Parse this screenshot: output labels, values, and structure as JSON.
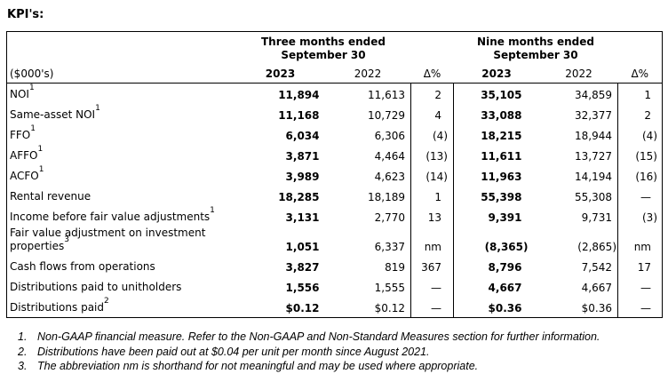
{
  "title": "KPI's:",
  "table": {
    "group_headers": [
      {
        "line1": "Three months ended",
        "line2": "September 30"
      },
      {
        "line1": "Nine months ended",
        "line2": "September 30"
      }
    ],
    "unit_label": "($000's)",
    "col_headers": [
      "2023",
      "2022",
      "Δ%",
      "2023",
      "2022",
      "Δ%"
    ],
    "rows": [
      {
        "label": "NOI",
        "sup": "1",
        "values": [
          "11,894",
          "11,613",
          "2",
          "35,105",
          "34,859",
          "1"
        ]
      },
      {
        "label": "Same-asset NOI",
        "sup": "1",
        "values": [
          "11,168",
          "10,729",
          "4",
          "33,088",
          "32,377",
          "2"
        ]
      },
      {
        "label": "FFO",
        "sup": "1",
        "values": [
          "6,034",
          "6,306",
          "(4)",
          "18,215",
          "18,944",
          "(4)"
        ]
      },
      {
        "label": "AFFO",
        "sup": "1",
        "values": [
          "3,871",
          "4,464",
          "(13)",
          "11,611",
          "13,727",
          "(15)"
        ]
      },
      {
        "label": "ACFO",
        "sup": "1",
        "values": [
          "3,989",
          "4,623",
          "(14)",
          "11,963",
          "14,194",
          "(16)"
        ]
      },
      {
        "label": "Rental revenue",
        "sup": "",
        "values": [
          "18,285",
          "18,189",
          "1",
          "55,398",
          "55,308",
          "—"
        ]
      },
      {
        "label": "Income before fair value adjustments",
        "sup": "1",
        "values": [
          "3,131",
          "2,770",
          "13",
          "9,391",
          "9,731",
          "(3)"
        ]
      },
      {
        "label": "Fair value adjustment on investment",
        "label2": "properties",
        "sup": "3",
        "values": [
          "1,051",
          "6,337",
          "nm",
          "(8,365)",
          "(2,865)",
          "nm"
        ]
      },
      {
        "label": "Cash flows from operations",
        "sup": "",
        "values": [
          "3,827",
          "819",
          "367",
          "8,796",
          "7,542",
          "17"
        ]
      },
      {
        "label": "Distributions paid to unitholders",
        "sup": "",
        "values": [
          "1,556",
          "1,555",
          "—",
          "4,667",
          "4,667",
          "—"
        ]
      },
      {
        "label": "Distributions paid",
        "sup": "2",
        "values": [
          "$0.12",
          "$0.12",
          "—",
          "$0.36",
          "$0.36",
          "—"
        ]
      }
    ]
  },
  "footnotes": [
    {
      "num": "1.",
      "text": "Non-GAAP financial measure. Refer to the Non-GAAP and Non-Standard Measures section for further information."
    },
    {
      "num": "2.",
      "text": "Distributions have been paid out at $0.04 per unit per month since August 2021."
    },
    {
      "num": "3.",
      "text": "The abbreviation nm is shorthand for not meaningful and may be used where appropriate."
    }
  ],
  "colors": {
    "text": "#000000",
    "background": "#ffffff",
    "border": "#000000"
  }
}
